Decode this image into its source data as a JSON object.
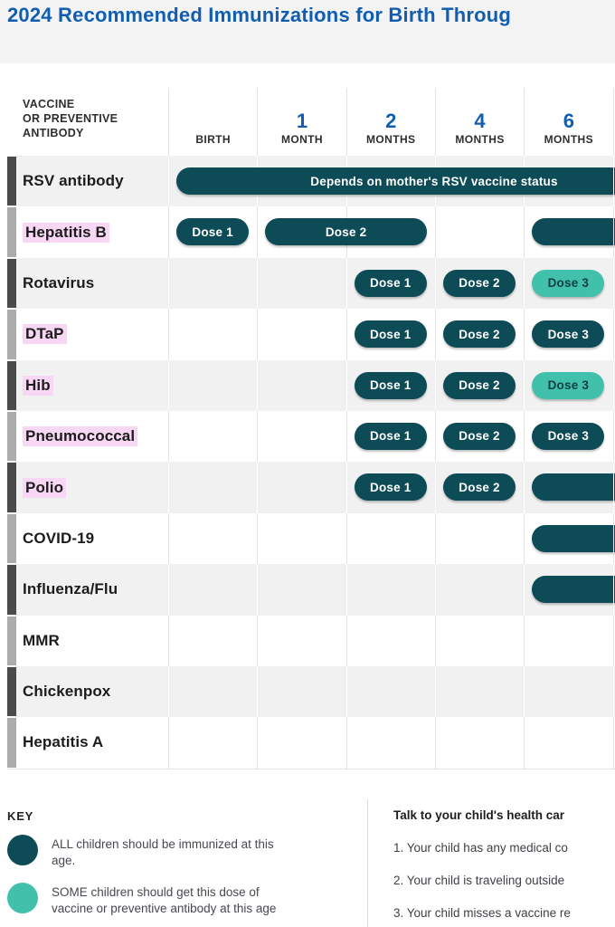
{
  "title": "2024 Recommended Immunizations for Birth Throug",
  "colors": {
    "title_blue": "#115EB0",
    "dose_all_teal": "#0D4B57",
    "dose_some_teal": "#41C1AB",
    "label_highlight_pink": "#F8D7F4",
    "row_shade_gray": "#F1F1F1",
    "top_band_gray": "#F3F3F3"
  },
  "table": {
    "corner_header": "VACCINE\nOR PREVENTIVE\nANTIBODY",
    "columns": [
      {
        "num": "",
        "unit": "BIRTH"
      },
      {
        "num": "1",
        "unit": "MONTH"
      },
      {
        "num": "2",
        "unit": "MONTHS"
      },
      {
        "num": "4",
        "unit": "MONTHS"
      },
      {
        "num": "6",
        "unit": "MONTHS"
      }
    ],
    "rows": [
      {
        "label": "RSV antibody",
        "highlighted": false,
        "pills": [
          {
            "col": 0,
            "custom_width": 570,
            "label": "Depends on mother's RSV vaccine status",
            "variant": "all"
          }
        ]
      },
      {
        "label": "Hepatitis B",
        "highlighted": true,
        "pills": [
          {
            "col": 0,
            "span": 1,
            "label": "Dose 1",
            "variant": "all"
          },
          {
            "col": 1,
            "span": 2,
            "label": "Dose 2",
            "variant": "all"
          },
          {
            "col": 4,
            "overflow": true,
            "label": "",
            "variant": "all"
          }
        ]
      },
      {
        "label": "Rotavirus",
        "highlighted": false,
        "pills": [
          {
            "col": 2,
            "span": 1,
            "label": "Dose 1",
            "variant": "all"
          },
          {
            "col": 3,
            "span": 1,
            "label": "Dose 2",
            "variant": "all"
          },
          {
            "col": 4,
            "span": 1,
            "label": "Dose 3",
            "variant": "some"
          }
        ]
      },
      {
        "label": "DTaP",
        "highlighted": true,
        "pills": [
          {
            "col": 2,
            "span": 1,
            "label": "Dose 1",
            "variant": "all"
          },
          {
            "col": 3,
            "span": 1,
            "label": "Dose 2",
            "variant": "all"
          },
          {
            "col": 4,
            "span": 1,
            "label": "Dose 3",
            "variant": "all"
          }
        ]
      },
      {
        "label": "Hib",
        "highlighted": true,
        "pills": [
          {
            "col": 2,
            "span": 1,
            "label": "Dose 1",
            "variant": "all"
          },
          {
            "col": 3,
            "span": 1,
            "label": "Dose 2",
            "variant": "all"
          },
          {
            "col": 4,
            "span": 1,
            "label": "Dose 3",
            "variant": "some"
          }
        ]
      },
      {
        "label": "Pneumococcal",
        "highlighted": true,
        "pills": [
          {
            "col": 2,
            "span": 1,
            "label": "Dose 1",
            "variant": "all"
          },
          {
            "col": 3,
            "span": 1,
            "label": "Dose 2",
            "variant": "all"
          },
          {
            "col": 4,
            "span": 1,
            "label": "Dose 3",
            "variant": "all"
          }
        ]
      },
      {
        "label": "Polio",
        "highlighted": true,
        "pills": [
          {
            "col": 2,
            "span": 1,
            "label": "Dose 1",
            "variant": "all"
          },
          {
            "col": 3,
            "span": 1,
            "label": "Dose 2",
            "variant": "all"
          },
          {
            "col": 4,
            "overflow": true,
            "label": "",
            "variant": "all"
          }
        ]
      },
      {
        "label": "COVID-19",
        "highlighted": false,
        "pills": [
          {
            "col": 4,
            "overflow": true,
            "label": "",
            "variant": "all"
          }
        ]
      },
      {
        "label": "Influenza/Flu",
        "highlighted": false,
        "pills": [
          {
            "col": 4,
            "overflow": true,
            "label": "",
            "variant": "all"
          }
        ]
      },
      {
        "label": "MMR",
        "highlighted": false,
        "pills": []
      },
      {
        "label": "Chickenpox",
        "highlighted": false,
        "pills": []
      },
      {
        "label": "Hepatitis A",
        "highlighted": false,
        "pills": []
      }
    ]
  },
  "key": {
    "heading": "KEY",
    "items": [
      {
        "swatch": "all",
        "text": "ALL children should be immunized at this age."
      },
      {
        "swatch": "some",
        "text": "SOME children should get this dose of vaccine or preventive antibody at this age"
      }
    ]
  },
  "advice": {
    "intro": "Talk to your child's health car",
    "items": [
      "1. Your child has any medical co",
      "2. Your child is traveling outside",
      "3. Your child misses a vaccine re"
    ]
  }
}
